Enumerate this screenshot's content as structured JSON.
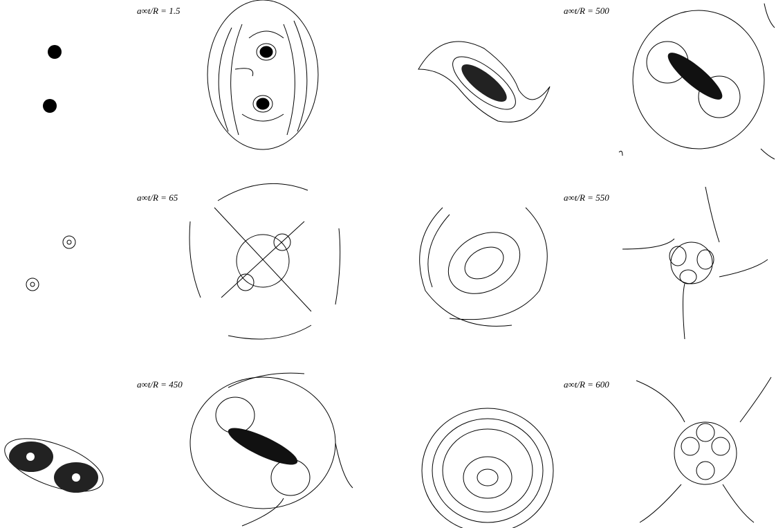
{
  "panels": [
    {
      "label": "a∞t/R = 1.5"
    },
    {
      "label": "a∞t/R = 500"
    },
    {
      "label": "a∞t/R = 65"
    },
    {
      "label": "a∞t/R = 550"
    },
    {
      "label": "a∞t/R = 450"
    },
    {
      "label": "a∞t/R = 600"
    }
  ]
}
